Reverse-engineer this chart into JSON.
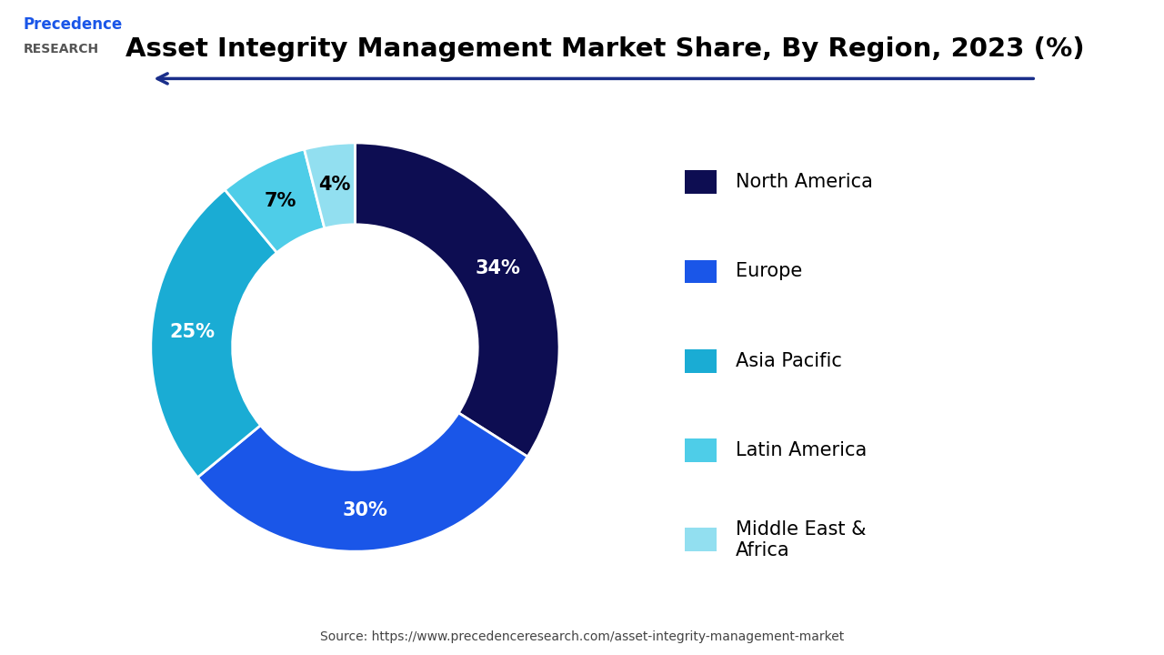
{
  "title": "Asset Integrity Management Market Share, By Region, 2023 (%)",
  "segments": [
    {
      "label": "North America",
      "value": 34,
      "color": "#0d0d52"
    },
    {
      "label": "Europe",
      "value": 30,
      "color": "#1a56e8"
    },
    {
      "label": "Asia Pacific",
      "value": 25,
      "color": "#1aacd4"
    },
    {
      "label": "Latin America",
      "value": 7,
      "color": "#4ecde8"
    },
    {
      "label": "Middle East &\nAfrica",
      "value": 4,
      "color": "#92dff0"
    }
  ],
  "label_colors": [
    "white",
    "white",
    "white",
    "black",
    "black"
  ],
  "source_text": "Source: https://www.precedenceresearch.com/asset-integrity-management-market",
  "background_color": "#ffffff",
  "title_fontsize": 21,
  "legend_fontsize": 15,
  "label_fontsize": 15,
  "donut_width": 0.4,
  "startangle": 90
}
